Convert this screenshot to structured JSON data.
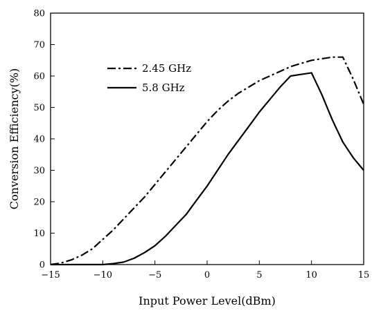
{
  "chart_data": {
    "type": "line",
    "title": "",
    "xlabel": "Input Power Level(dBm)",
    "ylabel": "Conversion Efficiency(%)",
    "xlim": [
      -15,
      15
    ],
    "ylim": [
      0,
      80
    ],
    "xticks": [
      -15,
      -10,
      -5,
      0,
      5,
      10,
      15
    ],
    "yticks": [
      0,
      10,
      20,
      30,
      40,
      50,
      60,
      70,
      80
    ],
    "grid": false,
    "legend_position": "upper-left",
    "series": [
      {
        "name": "2.45 GHz",
        "style": "dash-dot",
        "color": "#000000",
        "x": [
          -15,
          -14,
          -13,
          -12,
          -11,
          -10,
          -9,
          -8,
          -7,
          -6,
          -5,
          -4,
          -3,
          -2,
          -1,
          0,
          1,
          2,
          3,
          4,
          5,
          6,
          7,
          8,
          9,
          10,
          11,
          12,
          13,
          14,
          15
        ],
        "y": [
          0,
          0.5,
          1.5,
          3,
          5,
          8,
          11,
          14.5,
          18,
          21.5,
          25.5,
          29.5,
          33.5,
          37.5,
          41.5,
          45.5,
          49,
          52,
          54.5,
          56.5,
          58.5,
          60,
          61.5,
          63,
          64,
          65,
          65.5,
          66,
          66,
          59,
          51
        ]
      },
      {
        "name": "5.8 GHz",
        "style": "solid",
        "color": "#000000",
        "x": [
          -15,
          -14,
          -13,
          -12,
          -11,
          -10,
          -9,
          -8,
          -7,
          -6,
          -5,
          -4,
          -3,
          -2,
          -1,
          0,
          1,
          2,
          3,
          4,
          5,
          6,
          7,
          8,
          9,
          10,
          11,
          12,
          13,
          14,
          15
        ],
        "y": [
          0,
          0,
          0,
          0,
          0,
          0,
          0.3,
          0.8,
          2,
          3.8,
          6,
          9,
          12.5,
          16,
          20.5,
          25,
          30,
          35,
          39.5,
          44,
          48.5,
          52.5,
          56.5,
          60,
          60.5,
          61,
          54,
          46,
          39,
          34,
          30
        ]
      }
    ]
  }
}
